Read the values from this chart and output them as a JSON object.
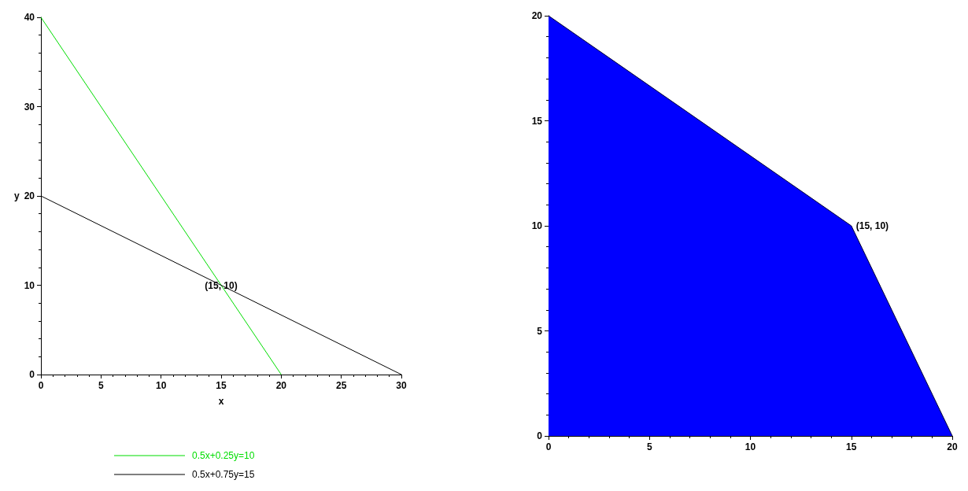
{
  "chart_data": [
    {
      "type": "line",
      "xlabel": "x",
      "ylabel": "y",
      "xlim": [
        0,
        30
      ],
      "xticks": [
        0,
        5,
        10,
        15,
        20,
        25,
        30
      ],
      "ylim": [
        0,
        40
      ],
      "yticks": [
        0,
        10,
        20,
        30,
        40
      ],
      "grid": false,
      "legend": "bottom",
      "marker": "none",
      "annotations": [
        {
          "text": "(15, 10)",
          "x": 15,
          "y": 10
        }
      ],
      "series": [
        {
          "name": "0.5x+0.25y=10",
          "color": "#00dd00",
          "x": [
            0,
            20
          ],
          "values": [
            40,
            0
          ]
        },
        {
          "name": "0.5x+0.75y=15",
          "color": "#000000",
          "x": [
            0,
            30
          ],
          "values": [
            20,
            0
          ]
        }
      ]
    },
    {
      "type": "area",
      "xlim": [
        0,
        20
      ],
      "xticks": [
        0,
        5,
        10,
        15,
        20
      ],
      "ylim": [
        0,
        20
      ],
      "yticks": [
        0,
        5,
        10,
        15,
        20
      ],
      "grid": false,
      "legend": false,
      "marker": "none",
      "annotations": [
        {
          "text": "(15, 10)",
          "x": 15,
          "y": 10
        }
      ],
      "series": [
        {
          "color": "#0000ff",
          "x": [
            0,
            15,
            20
          ],
          "values": [
            20,
            10,
            0
          ]
        }
      ]
    }
  ]
}
